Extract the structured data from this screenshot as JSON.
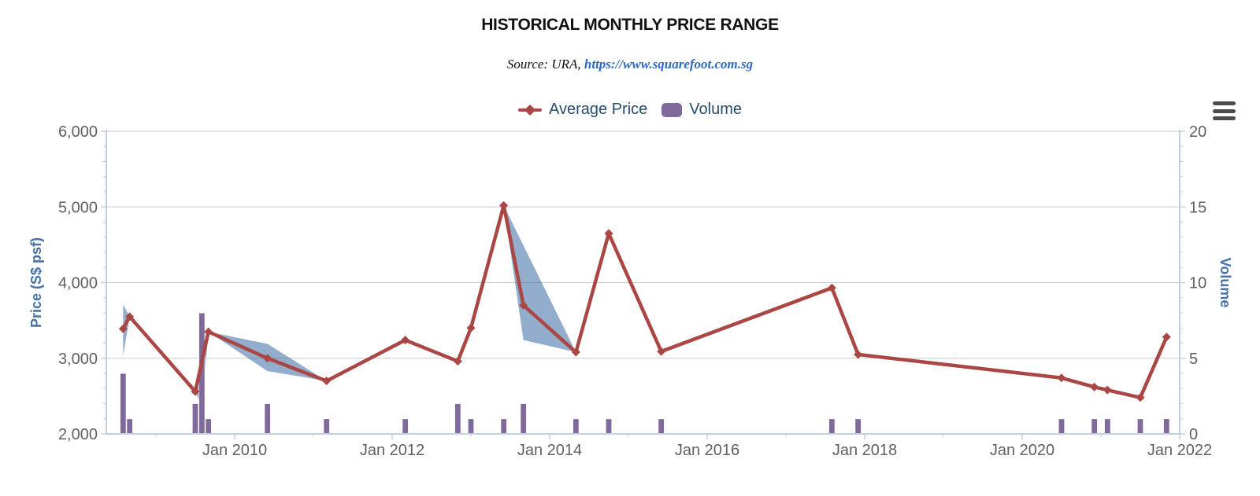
{
  "title": "HISTORICAL MONTHLY PRICE RANGE",
  "subtitle": {
    "prefix": "Source: URA,",
    "link": "https://www.squarefoot.com.sg"
  },
  "legend": [
    {
      "label": "Average Price",
      "marker": "line-with-diamond"
    },
    {
      "label": "Volume",
      "marker": "rounded-square"
    }
  ],
  "icons": {
    "export_menu": "hamburger-menu"
  },
  "colors": {
    "price_line": "#AA4643",
    "volume_bar": "#80699B",
    "range_band": "rgba(69,114,167,0.58)",
    "axis_title": "#4572A7",
    "legend_text": "#274B6D",
    "tick_label": "#606060",
    "gridline": "#C8C8C8",
    "axis_line": "#C0D0E0",
    "subtitle_link": "#2E6BC0",
    "menu_icon": "#4C4C4C"
  },
  "chart_data": {
    "type": "line",
    "title": "HISTORICAL MONTHLY PRICE RANGE",
    "subtitle": "Source: URA, https://www.squarefoot.com.sg",
    "legend_position": "top-center",
    "grid": "horizontal-only",
    "x_axis": {
      "kind": "datetime",
      "range_start": "2008-05",
      "range_end": "2022-01",
      "major_tick_labels": [
        "Jan 2010",
        "Jan 2012",
        "Jan 2014",
        "Jan 2016",
        "Jan 2018",
        "Jan 2020",
        "Jan 2022"
      ],
      "major_tick_years": [
        2010,
        2012,
        2014,
        2016,
        2018,
        2020,
        2022
      ],
      "minor_tick_years": [
        2009,
        2011,
        2013,
        2015,
        2017,
        2019,
        2021
      ]
    },
    "y_axis_left": {
      "title": "Price (S$ psf)",
      "min": 2000,
      "max": 6000,
      "tick_interval": 1000,
      "minor_tick_interval": 200,
      "tick_labels": [
        "2,000",
        "3,000",
        "4,000",
        "5,000",
        "6,000"
      ]
    },
    "y_axis_right": {
      "title": "Volume",
      "min": 0,
      "max": 20,
      "tick_interval": 5,
      "minor_tick_interval": 1,
      "tick_labels": [
        "0",
        "5",
        "10",
        "15",
        "20"
      ]
    },
    "series": [
      {
        "name": "Average Price",
        "type": "line",
        "marker": "diamond",
        "points": [
          [
            "2008-08",
            3390
          ],
          [
            "2008-09",
            3550
          ],
          [
            "2009-07",
            2560
          ],
          [
            "2009-09",
            3350
          ],
          [
            "2010-06",
            3000
          ],
          [
            "2011-03",
            2700
          ],
          [
            "2012-03",
            3240
          ],
          [
            "2012-11",
            2960
          ],
          [
            "2013-01",
            3400
          ],
          [
            "2013-06",
            5020
          ],
          [
            "2013-09",
            3700
          ],
          [
            "2014-05",
            3080
          ],
          [
            "2014-10",
            4650
          ],
          [
            "2015-06",
            3090
          ],
          [
            "2017-08",
            3930
          ],
          [
            "2017-12",
            3050
          ],
          [
            "2020-07",
            2740
          ],
          [
            "2020-12",
            2620
          ],
          [
            "2021-02",
            2580
          ],
          [
            "2021-07",
            2480
          ],
          [
            "2021-11",
            3280
          ]
        ]
      },
      {
        "name": "Volume",
        "type": "column",
        "points": [
          [
            "2008-08",
            4
          ],
          [
            "2008-09",
            1
          ],
          [
            "2009-07",
            2
          ],
          [
            "2009-08",
            8
          ],
          [
            "2009-09",
            1
          ],
          [
            "2010-06",
            2
          ],
          [
            "2011-03",
            1
          ],
          [
            "2012-03",
            1
          ],
          [
            "2012-11",
            2
          ],
          [
            "2013-01",
            1
          ],
          [
            "2013-06",
            1
          ],
          [
            "2013-09",
            2
          ],
          [
            "2014-05",
            1
          ],
          [
            "2014-10",
            1
          ],
          [
            "2015-06",
            1
          ],
          [
            "2017-08",
            1
          ],
          [
            "2017-12",
            1
          ],
          [
            "2020-07",
            1
          ],
          [
            "2020-12",
            1
          ],
          [
            "2021-02",
            1
          ],
          [
            "2021-07",
            1
          ],
          [
            "2021-11",
            1
          ]
        ]
      },
      {
        "name": "Price Range",
        "type": "arearange",
        "bands": [
          [
            [
              "2008-08",
              3710
            ],
            [
              "2008-09",
              3550
            ],
            [
              "2008-08",
              3030
            ]
          ],
          [
            [
              "2009-07",
              2560
            ],
            [
              "2009-09",
              3350
            ],
            [
              "2009-08",
              2340
            ]
          ],
          [
            [
              "2009-09",
              3350
            ],
            [
              "2010-06",
              3190
            ],
            [
              "2011-03",
              2700
            ],
            [
              "2010-06",
              2830
            ]
          ],
          [
            [
              "2013-06",
              5020
            ],
            [
              "2014-05",
              3080
            ],
            [
              "2013-09",
              3240
            ]
          ]
        ]
      }
    ]
  }
}
